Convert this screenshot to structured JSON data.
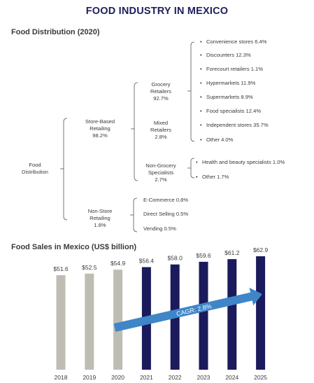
{
  "page": {
    "title": "FOOD INDUSTRY IN MEXICO"
  },
  "distribution": {
    "title": "Food Distribution (2020)",
    "root": {
      "label_lines": [
        "Food",
        "Distribution"
      ]
    },
    "store_based": {
      "label_lines": [
        "Store-Based",
        "Retailing",
        "98.2%"
      ]
    },
    "non_store": {
      "label_lines": [
        "Non-Store",
        "Retailing",
        "1.8%"
      ]
    },
    "grocery": {
      "label_lines": [
        "Grocery",
        "Retailers",
        "92.7%"
      ]
    },
    "mixed": {
      "label_lines": [
        "Mixed",
        "Retailers",
        "2.8%"
      ]
    },
    "non_grocery": {
      "label_lines": [
        "Non-Grocery",
        "Specialists",
        "2.7%"
      ]
    },
    "grocery_items": [
      "Convenience stores 6.4%",
      "Discounters 12.3%",
      "Forecourt retailers 1.1%",
      "Hypermarkets 11.9%",
      "Supermarkets 8.9%",
      "Food specialists 12.4%",
      "Independent stores 35.7%",
      "Other 4.0%"
    ],
    "non_grocery_items": [
      "Health and beauty specialists 1.0%",
      "Other 1.7%"
    ],
    "non_store_items": [
      "E-Commerce 0.8%",
      "Direct Selling 0.5%",
      "Vending 0.5%"
    ],
    "bullet": "•"
  },
  "chart_data": {
    "type": "bar",
    "title": "Food Sales in Mexico (US$ billion)",
    "categories": [
      "2018",
      "2019",
      "2020",
      "2021",
      "2022",
      "2023",
      "2024",
      "2025"
    ],
    "values": [
      51.6,
      52.5,
      54.9,
      56.4,
      58.0,
      59.6,
      61.2,
      62.9
    ],
    "data_labels": [
      "$51.6",
      "$52.5",
      "$54.9",
      "$56.4",
      "$58.0",
      "$59.6",
      "$61.2",
      "$62.9"
    ],
    "historical_color": "#bfbdb3",
    "forecast_color": "#1a1a5c",
    "forecast_start_index": 3,
    "annotation": "CAGR: 2.8%",
    "annotation_color": "#3e86c7",
    "xlabel": "",
    "ylabel": "",
    "grid": false
  }
}
